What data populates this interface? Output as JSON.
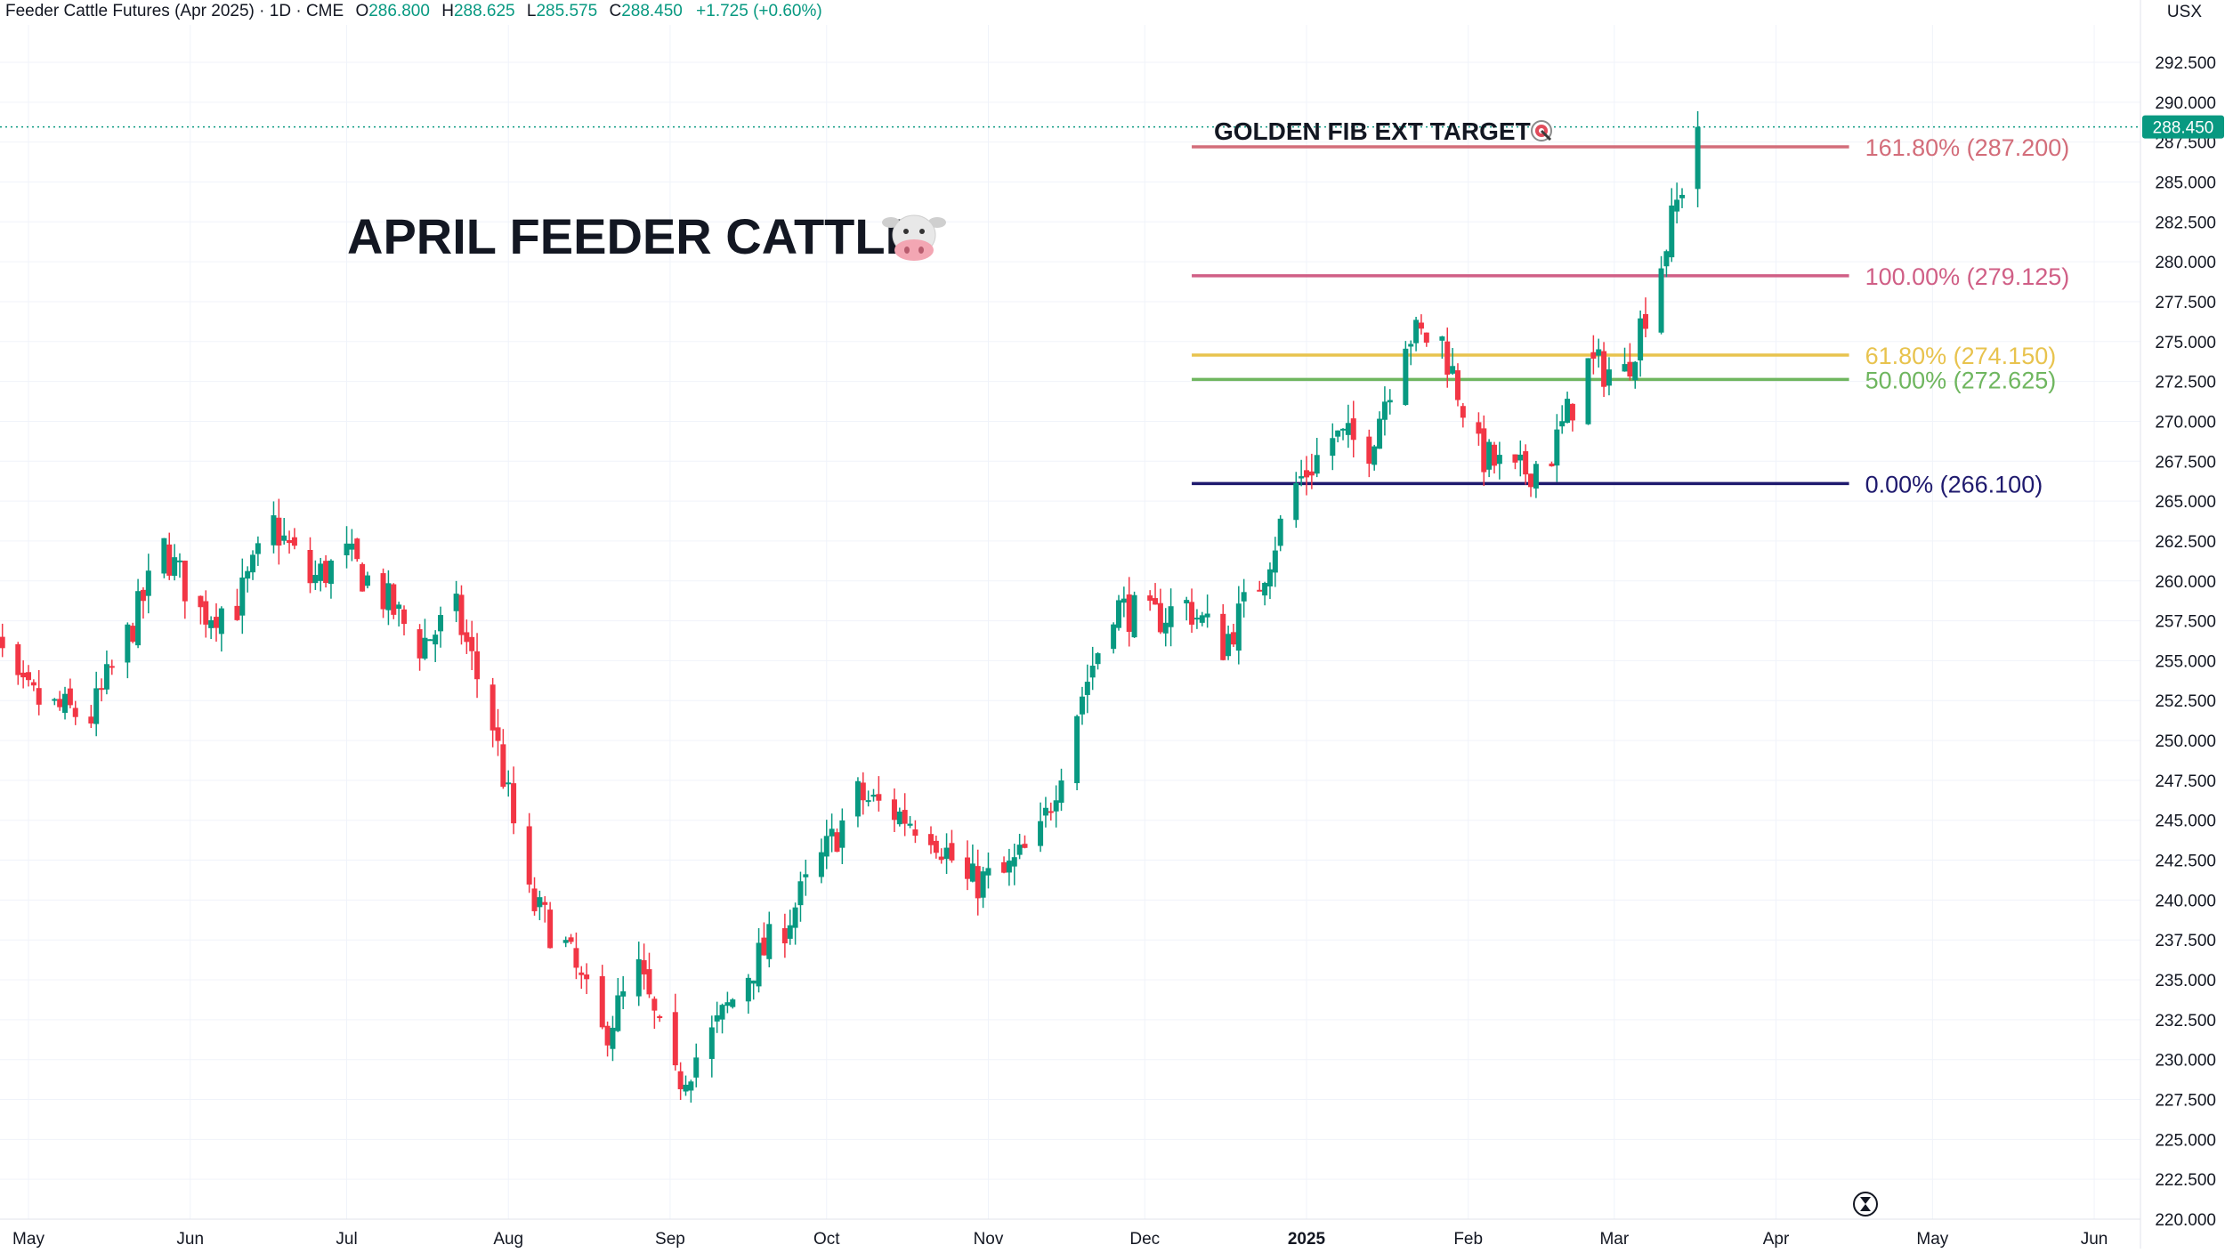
{
  "header": {
    "instrument": "Feeder Cattle Futures (Apr 2025)",
    "interval": "1D",
    "exchange": "CME",
    "open_label": "O",
    "open": "286.800",
    "high_label": "H",
    "high": "288.625",
    "low_label": "L",
    "low": "285.575",
    "close_label": "C",
    "close": "288.450",
    "change": "+1.725 (+0.60%)",
    "currency": "USX"
  },
  "annotations": {
    "headline": "APRIL FEEDER CATTLE",
    "target_label": "GOLDEN FIB EXT TARGET",
    "headline_icon": "cow-face-icon",
    "target_icon": "target-icon"
  },
  "colors": {
    "up": "#089981",
    "down": "#f23645",
    "fib_1618": "#d36d7a",
    "fib_1000": "#d05f86",
    "fib_0618": "#e8c34e",
    "fib_0500": "#6fb65f",
    "fib_0000": "#1f1a6e",
    "price_tag": "#089981"
  },
  "chart_data": {
    "type": "candlestick",
    "title": "Feeder Cattle Futures (Apr 2025)",
    "xlabel": "",
    "ylabel": "",
    "ylim": [
      220,
      294
    ],
    "grid": true,
    "last_price": 288.45,
    "y_ticks": [
      "220.000",
      "222.500",
      "225.000",
      "227.500",
      "230.000",
      "232.500",
      "235.000",
      "237.500",
      "240.000",
      "242.500",
      "245.000",
      "247.500",
      "250.000",
      "252.500",
      "255.000",
      "257.500",
      "260.000",
      "262.500",
      "265.000",
      "267.500",
      "270.000",
      "272.500",
      "275.000",
      "277.500",
      "280.000",
      "282.500",
      "285.000",
      "287.500",
      "290.000",
      "292.500"
    ],
    "x_ticks": [
      {
        "label": "May",
        "date": "2024-05-01"
      },
      {
        "label": "Jun",
        "date": "2024-06-01"
      },
      {
        "label": "Jul",
        "date": "2024-07-01"
      },
      {
        "label": "Aug",
        "date": "2024-08-01"
      },
      {
        "label": "Sep",
        "date": "2024-09-01"
      },
      {
        "label": "Oct",
        "date": "2024-10-01"
      },
      {
        "label": "Nov",
        "date": "2024-11-01"
      },
      {
        "label": "Dec",
        "date": "2024-12-01"
      },
      {
        "label": "2025",
        "date": "2025-01-01"
      },
      {
        "label": "Feb",
        "date": "2025-02-01"
      },
      {
        "label": "Mar",
        "date": "2025-03-01"
      },
      {
        "label": "Apr",
        "date": "2025-04-01"
      },
      {
        "label": "May",
        "date": "2025-05-01"
      },
      {
        "label": "Jun",
        "date": "2025-06-01"
      }
    ],
    "fib_levels": [
      {
        "label": "161.80% (287.200)",
        "price": 287.2,
        "color": "#d36d7a",
        "start_date": "2024-12-10"
      },
      {
        "label": "100.00% (279.125)",
        "price": 279.125,
        "color": "#d05f86",
        "start_date": "2024-12-10"
      },
      {
        "label": "61.80% (274.150)",
        "price": 274.15,
        "color": "#e8c34e",
        "start_date": "2024-12-10"
      },
      {
        "label": "50.00% (272.625)",
        "price": 272.625,
        "color": "#6fb65f",
        "start_date": "2024-12-10"
      },
      {
        "label": "0.00% (266.100)",
        "price": 266.1,
        "color": "#1f1a6e",
        "start_date": "2024-12-10"
      }
    ],
    "fib_end_date": "2025-04-15",
    "start_date": "2024-04-22",
    "close_path": [
      {
        "date": "2024-04-22",
        "close": 258.3
      },
      {
        "date": "2024-04-29",
        "close": 253.0
      },
      {
        "date": "2024-05-06",
        "close": 252.0
      },
      {
        "date": "2024-05-13",
        "close": 251.5
      },
      {
        "date": "2024-05-20",
        "close": 256.5
      },
      {
        "date": "2024-05-27",
        "close": 262.0
      },
      {
        "date": "2024-06-03",
        "close": 258.0
      },
      {
        "date": "2024-06-10",
        "close": 258.5
      },
      {
        "date": "2024-06-17",
        "close": 263.5
      },
      {
        "date": "2024-06-24",
        "close": 260.0
      },
      {
        "date": "2024-07-01",
        "close": 261.5
      },
      {
        "date": "2024-07-08",
        "close": 259.0
      },
      {
        "date": "2024-07-15",
        "close": 256.0
      },
      {
        "date": "2024-07-22",
        "close": 258.0
      },
      {
        "date": "2024-07-29",
        "close": 251.0
      },
      {
        "date": "2024-08-05",
        "close": 240.0
      },
      {
        "date": "2024-08-12",
        "close": 237.0
      },
      {
        "date": "2024-08-19",
        "close": 231.5
      },
      {
        "date": "2024-08-26",
        "close": 235.5
      },
      {
        "date": "2024-09-02",
        "close": 228.5
      },
      {
        "date": "2024-09-09",
        "close": 231.5
      },
      {
        "date": "2024-09-16",
        "close": 235.5
      },
      {
        "date": "2024-09-23",
        "close": 238.5
      },
      {
        "date": "2024-09-30",
        "close": 242.5
      },
      {
        "date": "2024-10-07",
        "close": 246.5
      },
      {
        "date": "2024-10-14",
        "close": 245.5
      },
      {
        "date": "2024-10-21",
        "close": 244.5
      },
      {
        "date": "2024-10-28",
        "close": 241.0
      },
      {
        "date": "2024-11-04",
        "close": 241.5
      },
      {
        "date": "2024-11-11",
        "close": 244.0
      },
      {
        "date": "2024-11-18",
        "close": 252.0
      },
      {
        "date": "2024-11-25",
        "close": 258.5
      },
      {
        "date": "2024-12-02",
        "close": 257.5
      },
      {
        "date": "2024-12-09",
        "close": 258.5
      },
      {
        "date": "2024-12-16",
        "close": 256.0
      },
      {
        "date": "2024-12-23",
        "close": 260.0
      },
      {
        "date": "2024-12-30",
        "close": 266.0
      },
      {
        "date": "2025-01-06",
        "close": 269.0
      },
      {
        "date": "2025-01-13",
        "close": 268.5
      },
      {
        "date": "2025-01-20",
        "close": 275.5
      },
      {
        "date": "2025-01-27",
        "close": 275.0
      },
      {
        "date": "2025-02-03",
        "close": 268.0
      },
      {
        "date": "2025-02-10",
        "close": 266.5
      },
      {
        "date": "2025-02-17",
        "close": 268.0
      },
      {
        "date": "2025-02-24",
        "close": 273.5
      },
      {
        "date": "2025-03-03",
        "close": 273.0
      },
      {
        "date": "2025-03-10",
        "close": 280.0
      },
      {
        "date": "2025-03-17",
        "close": 288.45
      }
    ]
  }
}
